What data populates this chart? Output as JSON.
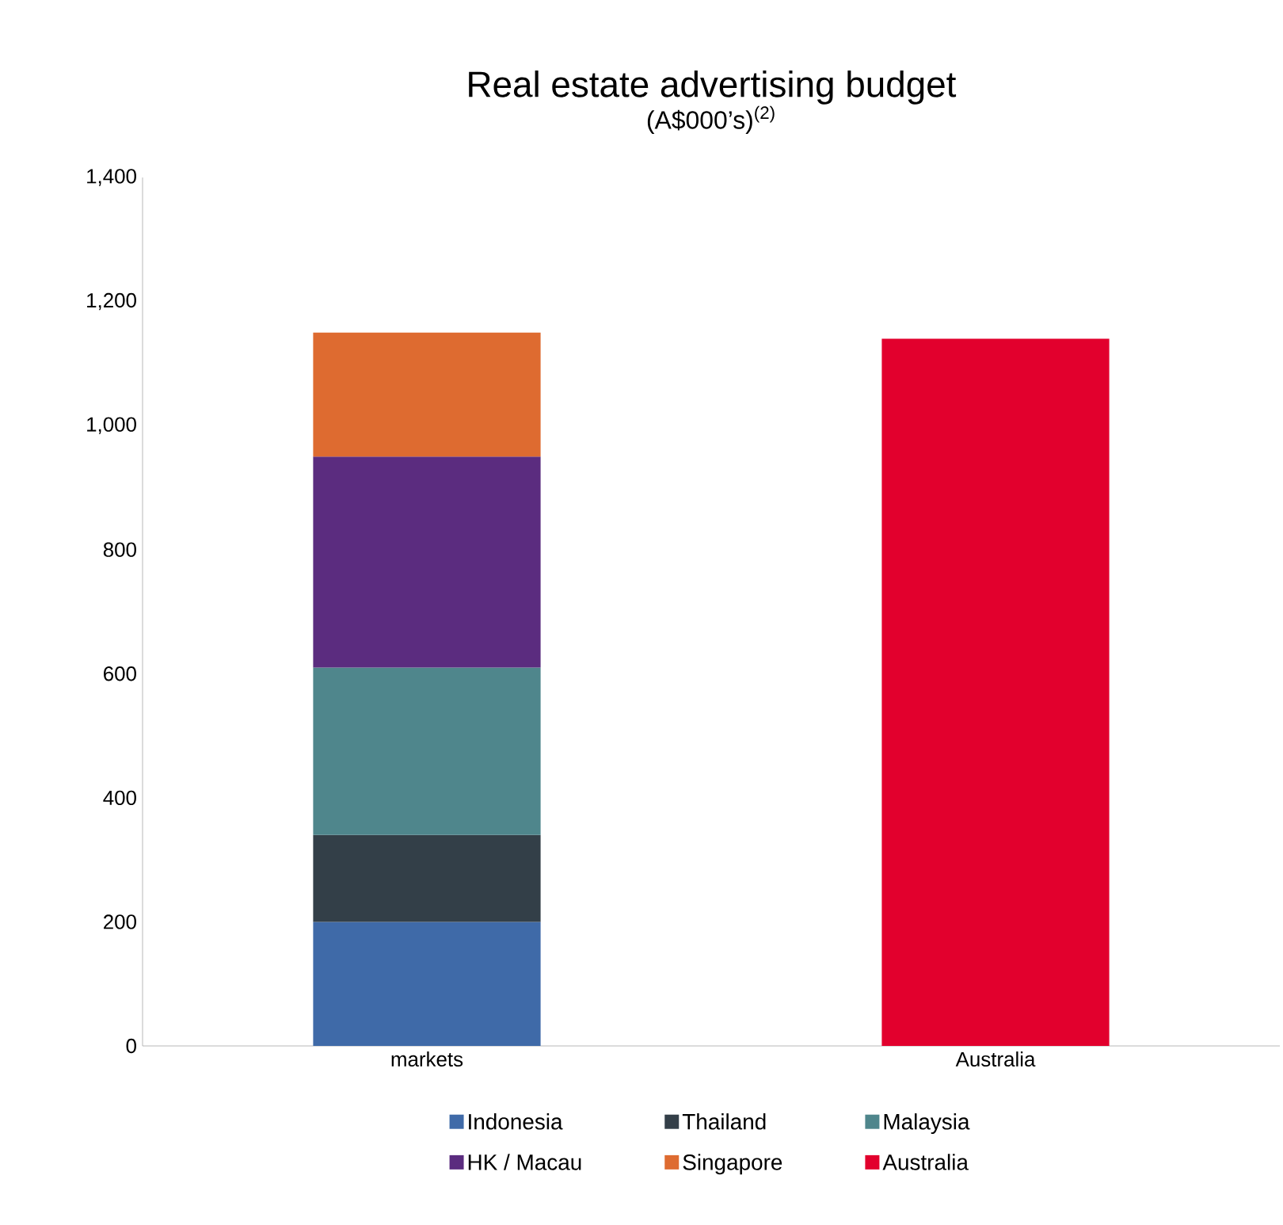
{
  "chart_data": {
    "type": "bar",
    "title": "Real estate advertising budget",
    "subtitle": "(A$000’s)$^{(2)}$",
    "stacked": true,
    "categories": [
      "markets",
      "Australia"
    ],
    "series": [
      {
        "name": "Indonesia",
        "color": "#3f6aa8",
        "values": [
          200,
          null
        ]
      },
      {
        "name": "Thailand",
        "color": "#333f48",
        "values": [
          140,
          null
        ]
      },
      {
        "name": "Malaysia",
        "color": "#4f868c",
        "values": [
          270,
          null
        ]
      },
      {
        "name": "HK / Macau",
        "color": "#5b2c7f",
        "values": [
          340,
          null
        ]
      },
      {
        "name": "Singapore",
        "color": "#de6b30",
        "values": [
          200,
          null
        ]
      },
      {
        "name": "Australia",
        "color": "#e2002d",
        "values": [
          null,
          1140
        ]
      }
    ],
    "ylim": [
      0,
      1400
    ],
    "yticks": [
      0,
      200,
      400,
      600,
      800,
      {
        "value": 1000,
        "label": "1,000"
      },
      {
        "value": 1200,
        "label": "1,200"
      },
      {
        "value": 1400,
        "label": "1,400"
      }
    ],
    "grid": false,
    "legend": "bottom"
  }
}
